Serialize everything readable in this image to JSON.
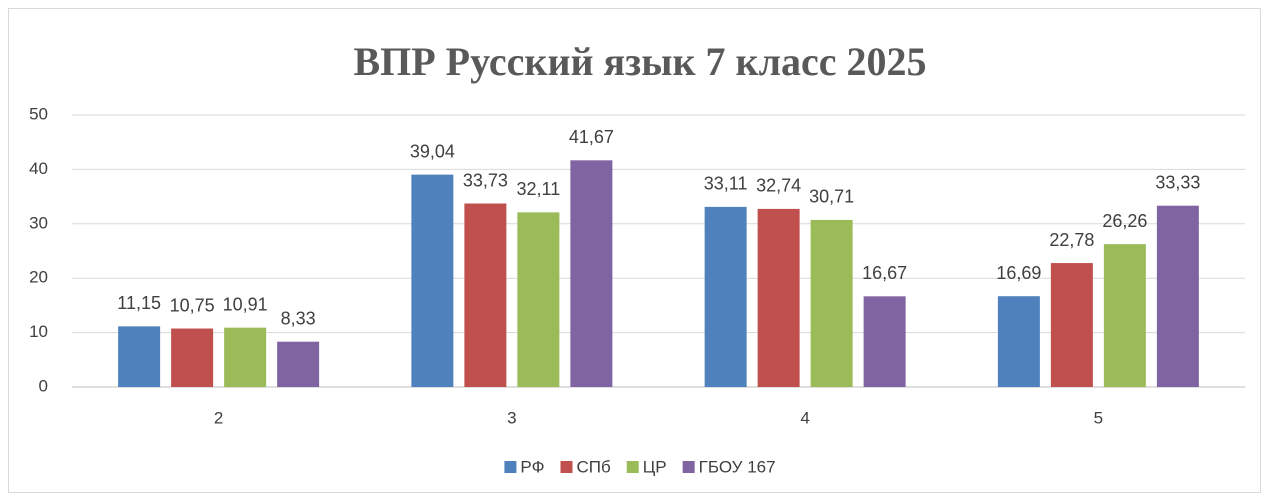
{
  "chart_data": {
    "type": "bar",
    "title": "ВПР Русский язык 7 класс 2025",
    "categories": [
      "2",
      "3",
      "4",
      "5"
    ],
    "series": [
      {
        "name": "РФ",
        "color": "#4f81bd",
        "values": [
          11.15,
          39.04,
          33.11,
          16.69
        ],
        "value_labels": [
          "11,15",
          "39,04",
          "33,11",
          "16,69"
        ]
      },
      {
        "name": "СПб",
        "color": "#c0504d",
        "values": [
          10.75,
          33.73,
          32.74,
          22.78
        ],
        "value_labels": [
          "10,75",
          "33,73",
          "32,74",
          "22,78"
        ]
      },
      {
        "name": "ЦР",
        "color": "#9bbb59",
        "values": [
          10.91,
          32.11,
          30.71,
          26.26
        ],
        "value_labels": [
          "10,91",
          "32,11",
          "30,71",
          "26,26"
        ]
      },
      {
        "name": "ГБОУ 167",
        "color": "#8064a2",
        "values": [
          8.33,
          41.67,
          16.67,
          33.33
        ],
        "value_labels": [
          "8,33",
          "41,67",
          "16,67",
          "33,33"
        ]
      }
    ],
    "ylim": [
      0,
      50
    ],
    "yticks": [
      0,
      10,
      20,
      30,
      40,
      50
    ],
    "grid": true,
    "legend": "bottom"
  }
}
